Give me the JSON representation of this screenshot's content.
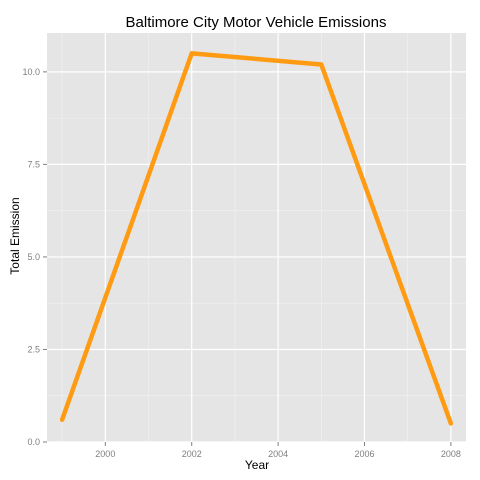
{
  "chart_data": {
    "type": "line",
    "title": "Baltimore City Motor Vehicle Emissions",
    "xlabel": "Year",
    "ylabel": "Total Emission",
    "x": [
      1999,
      2002,
      2005,
      2008
    ],
    "series": [
      {
        "values": [
          0.6,
          10.5,
          10.2,
          0.5
        ]
      }
    ],
    "xlim": [
      1998.65,
      2008.35
    ],
    "ylim": [
      0,
      11.05
    ],
    "x_ticks": [
      2000,
      2002,
      2004,
      2006,
      2008
    ],
    "x_tick_labels": [
      "2000",
      "2002",
      "2004",
      "2006",
      "2008"
    ],
    "y_ticks": [
      0,
      2.5,
      5,
      7.5,
      10
    ],
    "y_tick_labels": [
      "0.0",
      "2.5",
      "5.0",
      "7.5",
      "10.0"
    ],
    "grid": true,
    "colors": {
      "panel": "#e5e5e5",
      "grid_major": "#ffffff",
      "grid_minor": "#f2f2f2",
      "line": "#ff9b13"
    }
  }
}
